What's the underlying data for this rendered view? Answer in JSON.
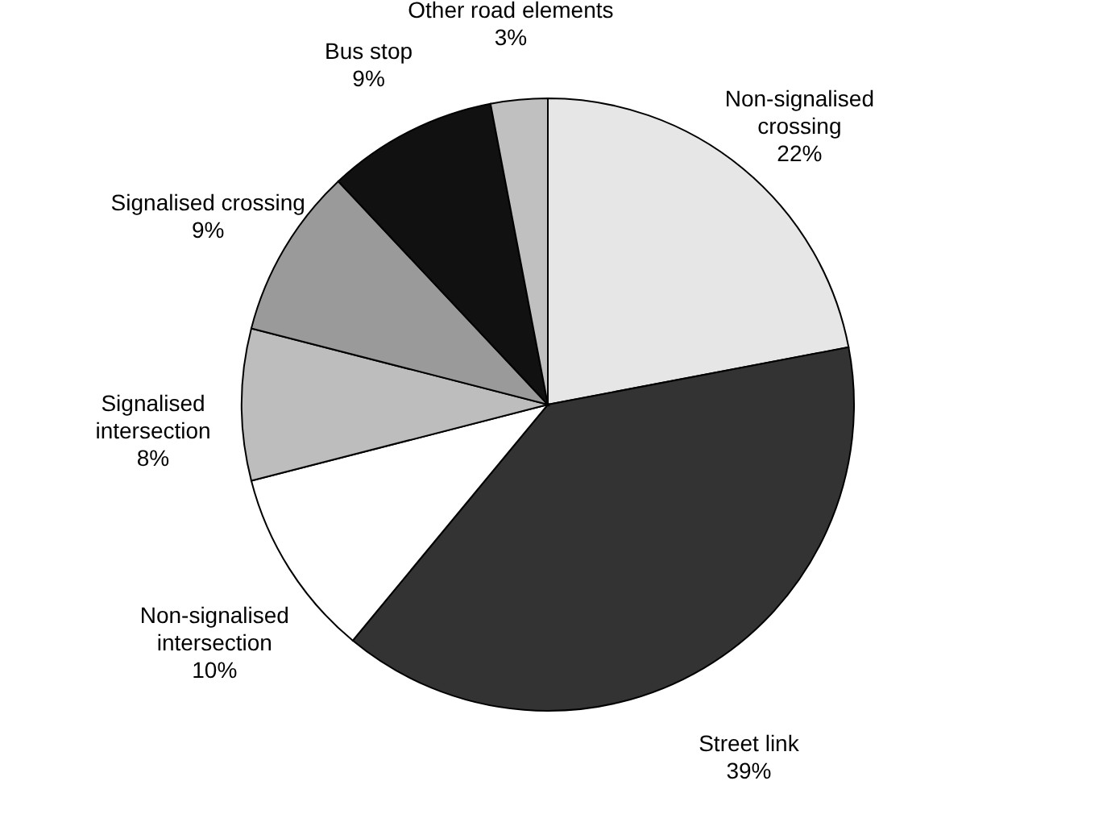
{
  "chart_data": {
    "type": "pie",
    "categories": [
      "Non-signalised crossing",
      "Street link",
      "Non-signalised intersection",
      "Signalised intersection",
      "Signalised crossing",
      "Bus stop",
      "Other road elements"
    ],
    "values": [
      22,
      39,
      10,
      8,
      9,
      9,
      3
    ],
    "value_labels": [
      "22%",
      "39%",
      "10%",
      "8%",
      "9%",
      "9%",
      "3%"
    ],
    "colors": [
      "#e6e6e6",
      "#333333",
      "#ffffff",
      "#bdbdbd",
      "#9a9a9a",
      "#111111",
      "#c0c0c0"
    ],
    "legend": false
  }
}
